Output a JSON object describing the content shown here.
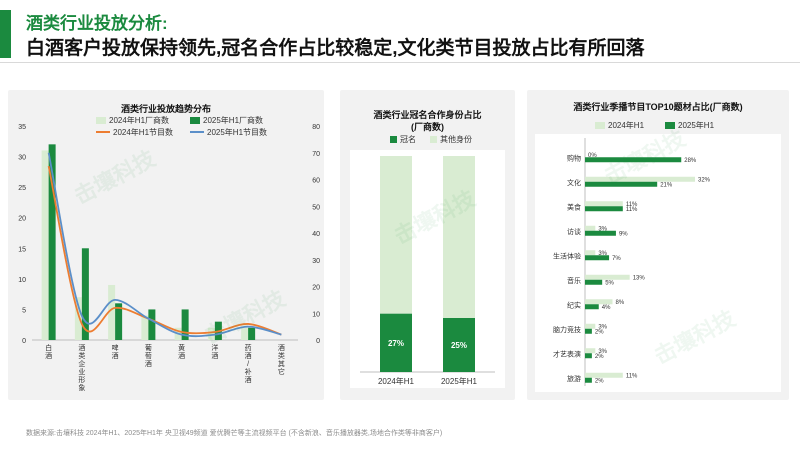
{
  "header": {
    "title": "酒类行业投放分析:",
    "subtitle": "白酒客户投放保持领先,冠名合作占比较稳定,文化类节目投放占比有所回落"
  },
  "colors": {
    "accent": "#1b8a3f",
    "light_green": "#d9ecd2",
    "orange": "#ed7d31",
    "blue": "#5b8fc9"
  },
  "watermark": "击壤科技",
  "footer": "数据来源:击壤科技 2024年H1、2025年H1年 央卫视49频道 爱优腾芒等主流视频平台 (不含新浪、音乐播放器类,场地合作类等非商客户)",
  "chart_data": [
    {
      "type": "bar",
      "title": "酒类行业投放趋势分布",
      "categories": [
        "白酒",
        "酒类企业形象",
        "啤酒",
        "葡萄酒",
        "黄酒",
        "洋酒",
        "药酒/补酒",
        "酒类其它"
      ],
      "series": [
        {
          "name": "2024年H1厂商数",
          "kind": "bar",
          "axis": "left",
          "values": [
            31,
            7,
            9,
            4,
            2,
            2,
            2,
            0
          ]
        },
        {
          "name": "2025年H1厂商数",
          "kind": "bar",
          "axis": "left",
          "values": [
            32,
            15,
            6,
            5,
            5,
            3,
            2,
            0
          ]
        },
        {
          "name": "2024年H1节目数",
          "kind": "line",
          "axis": "right",
          "values": [
            65,
            6,
            12,
            8,
            3,
            3,
            6,
            2
          ]
        },
        {
          "name": "2025年H1节目数",
          "kind": "line",
          "axis": "right",
          "values": [
            70,
            9,
            15,
            8,
            2,
            2,
            5,
            2
          ]
        }
      ],
      "yleft_ticks": [
        "0",
        "5",
        "10",
        "15",
        "20",
        "25",
        "30",
        "35"
      ],
      "yright_ticks": [
        "0",
        "10",
        "20",
        "30",
        "40",
        "50",
        "60",
        "70",
        "80"
      ],
      "ylim_left": [
        0,
        35
      ],
      "ylim_right": [
        0,
        80
      ],
      "legend_position": "top"
    },
    {
      "type": "bar",
      "stacked": true,
      "percent": true,
      "title": "酒类行业冠名合作身份占比",
      "title_line2": "(厂商数)",
      "categories": [
        "2024年H1",
        "2025年H1"
      ],
      "series": [
        {
          "name": "冠名",
          "values": [
            27,
            25
          ],
          "labels": [
            "27%",
            "25%"
          ]
        },
        {
          "name": "其他身份",
          "values": [
            73,
            75
          ]
        }
      ],
      "legend_position": "top"
    },
    {
      "type": "bar",
      "orientation": "horizontal",
      "title": "酒类行业季播节目TOP10题材占比(厂商数)",
      "categories": [
        "购物",
        "文化",
        "美食",
        "访谈",
        "生活体验",
        "音乐",
        "纪实",
        "脑力竞技",
        "才艺表演",
        "旅游"
      ],
      "series": [
        {
          "name": "2024年H1",
          "values": [
            0,
            32,
            11,
            3,
            3,
            13,
            8,
            3,
            3,
            11
          ],
          "labels": [
            "0%",
            "32%",
            "11%",
            "3%",
            "3%",
            "13%",
            "8%",
            "3%",
            "3%",
            "11%"
          ]
        },
        {
          "name": "2025年H1",
          "values": [
            28,
            21,
            11,
            9,
            7,
            5,
            4,
            2,
            2,
            2
          ],
          "labels": [
            "28%",
            "21%",
            "11%",
            "9%",
            "7%",
            "5%",
            "4%",
            "2%",
            "2%",
            "2%"
          ]
        }
      ],
      "legend_position": "top"
    }
  ]
}
